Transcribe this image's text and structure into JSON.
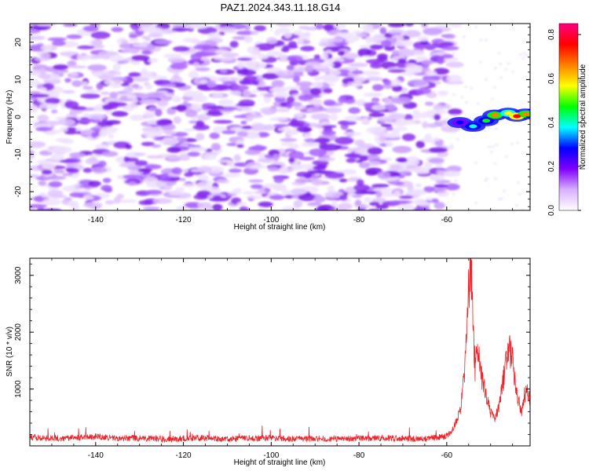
{
  "title": "PAZ1.2024.343.11.18.G14",
  "chart_data": [
    {
      "type": "heatmap",
      "xlabel": "Height of straight line (km)",
      "ylabel": "Frequency (Hz)",
      "xlim": [
        -155,
        -41
      ],
      "ylim": [
        -25,
        25
      ],
      "x_ticks": [
        -140,
        -120,
        -100,
        -80,
        -60
      ],
      "y_ticks": [
        -20,
        -10,
        0,
        10,
        20
      ],
      "grid": false,
      "colorbar": {
        "label": "Normalized spectral amplitude",
        "range": [
          0.0,
          0.85
        ],
        "ticks": [
          "0.0",
          "0.2",
          "0.4",
          "0.6",
          "0.8"
        ],
        "colors": [
          "#ffffff",
          "#d8b0ff",
          "#8000ff",
          "#0000ff",
          "#00ffff",
          "#00ff00",
          "#ffff00",
          "#ff8000",
          "#ff0000",
          "#ff0080"
        ]
      },
      "signal_track": [
        {
          "x": -57,
          "y": -1.5,
          "value": 0.25
        },
        {
          "x": -54,
          "y": -2.5,
          "value": 0.35
        },
        {
          "x": -51,
          "y": -1.0,
          "value": 0.45
        },
        {
          "x": -49,
          "y": 0.5,
          "value": 0.7
        },
        {
          "x": -46,
          "y": 1.0,
          "value": 0.6
        },
        {
          "x": -44,
          "y": 0.2,
          "value": 0.8
        },
        {
          "x": -42,
          "y": 0.8,
          "value": 0.65
        }
      ]
    },
    {
      "type": "line",
      "xlabel": "Height of straight line (km)",
      "ylabel": "SNR (10 * v/v)",
      "xlim": [
        -155,
        -41
      ],
      "ylim": [
        0,
        3300
      ],
      "x_ticks": [
        -140,
        -120,
        -100,
        -80,
        -60
      ],
      "y_ticks": [
        1000,
        2000,
        3000
      ],
      "grid": false,
      "series": [
        {
          "color": "#e8232a",
          "x": [
            -155,
            -150,
            -145,
            -140,
            -135,
            -130,
            -125,
            -120,
            -115,
            -110,
            -105,
            -100,
            -95,
            -90,
            -85,
            -80,
            -75,
            -70,
            -65,
            -62,
            -60,
            -59,
            -58,
            -57,
            -56,
            -55,
            -54.5,
            -54,
            -53.5,
            -53,
            -52,
            -51,
            -50,
            -49,
            -48,
            -47,
            -46,
            -45,
            -44,
            -43,
            -42,
            -41
          ],
          "y": [
            150,
            130,
            140,
            160,
            130,
            140,
            120,
            130,
            140,
            120,
            130,
            140,
            120,
            130,
            120,
            130,
            140,
            130,
            120,
            150,
            180,
            250,
            400,
            600,
            1200,
            2800,
            3250,
            2200,
            1300,
            1700,
            1200,
            900,
            600,
            450,
            700,
            1200,
            1800,
            1500,
            900,
            600,
            1000,
            800
          ]
        }
      ]
    }
  ]
}
